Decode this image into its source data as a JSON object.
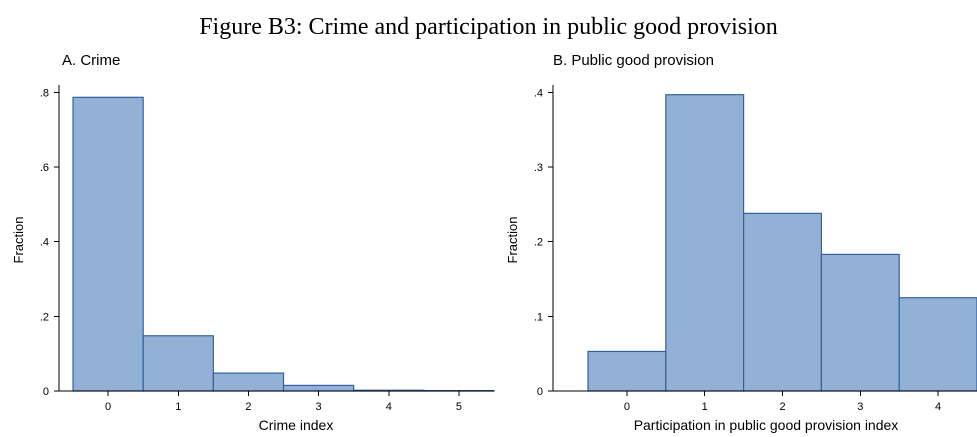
{
  "figure_title": "Figure B3: Crime and participation in public good provision",
  "chart_data": [
    {
      "type": "bar",
      "subtitle": "A. Crime",
      "xlabel": "Crime index",
      "ylabel": "Fraction",
      "categories": [
        "0",
        "1",
        "2",
        "3",
        "4",
        "5"
      ],
      "values": [
        0.787,
        0.148,
        0.048,
        0.015,
        0.002,
        0.001
      ],
      "yticks": [
        ".8",
        ".6",
        ".4",
        ".2",
        "0"
      ],
      "ytick_values": [
        0.8,
        0.6,
        0.4,
        0.2,
        0
      ],
      "ylim": [
        0,
        0.82
      ],
      "xlim": [
        -0.7,
        5.5
      ],
      "grid": false,
      "bar_color": "#93b1d7",
      "bar_edge_color": "#2e62a3"
    },
    {
      "type": "bar",
      "subtitle": "B. Public good provision",
      "xlabel": "Participation in public good provision index",
      "ylabel": "Fraction",
      "categories": [
        "0",
        "1",
        "2",
        "3",
        "4"
      ],
      "values": [
        0.053,
        0.397,
        0.238,
        0.183,
        0.125
      ],
      "yticks": [
        ".4",
        ".3",
        ".2",
        ".1",
        "0"
      ],
      "ytick_values": [
        0.4,
        0.3,
        0.2,
        0.1,
        0
      ],
      "ylim": [
        0,
        0.41
      ],
      "xlim": [
        -0.95,
        4.5
      ],
      "grid": false,
      "bar_color": "#93b1d7",
      "bar_edge_color": "#2e62a3"
    }
  ]
}
